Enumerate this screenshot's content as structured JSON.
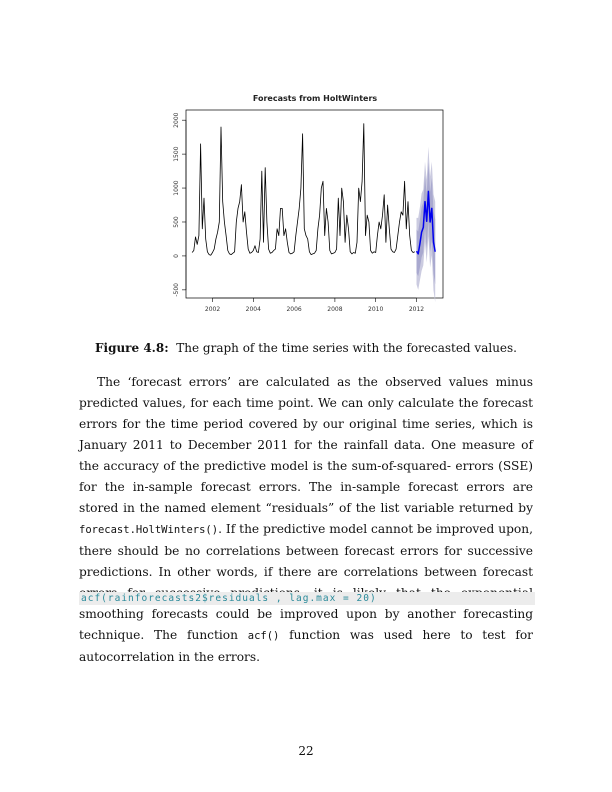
{
  "chart_data": {
    "type": "line",
    "title": "Forecasts from HoltWinters",
    "xlabel": "",
    "ylabel": "",
    "xlim": [
      2000.7,
      2013.3
    ],
    "ylim": [
      -620,
      2150
    ],
    "x_ticks": [
      2002,
      2004,
      2006,
      2008,
      2010,
      2012
    ],
    "x_tick_labels": [
      "2002",
      "2004",
      "2006",
      "2008",
      "2010",
      "2012"
    ],
    "y_ticks": [
      -500,
      0,
      500,
      1000,
      1500,
      2000
    ],
    "y_tick_labels": [
      "-500",
      "0",
      "500",
      "1000",
      "1500",
      "2000"
    ],
    "grid": false,
    "legend": "none",
    "colors": {
      "observed": "#000000",
      "forecast": "#0000ee",
      "band95": "#cbcbe0",
      "band80": "#a9a9cf"
    },
    "series": [
      {
        "x": [
          2001.0,
          2001.083,
          2001.167,
          2001.25,
          2001.333,
          2001.417,
          2001.5,
          2001.583,
          2001.667,
          2001.75,
          2001.833,
          2001.917,
          2002.0,
          2002.083,
          2002.167,
          2002.25,
          2002.333,
          2002.417,
          2002.5,
          2002.583,
          2002.667,
          2002.75,
          2002.833,
          2002.917,
          2003.0,
          2003.083,
          2003.167,
          2003.25,
          2003.333,
          2003.417,
          2003.5,
          2003.583,
          2003.667,
          2003.75,
          2003.833,
          2003.917,
          2004.0,
          2004.083,
          2004.167,
          2004.25,
          2004.333,
          2004.417,
          2004.5,
          2004.583,
          2004.667,
          2004.75,
          2004.833,
          2004.917,
          2005.0,
          2005.083,
          2005.167,
          2005.25,
          2005.333,
          2005.417,
          2005.5,
          2005.583,
          2005.667,
          2005.75,
          2005.833,
          2005.917,
          2006.0,
          2006.083,
          2006.167,
          2006.25,
          2006.333,
          2006.417,
          2006.5,
          2006.583,
          2006.667,
          2006.75,
          2006.833,
          2006.917,
          2007.0,
          2007.083,
          2007.167,
          2007.25,
          2007.333,
          2007.417,
          2007.5,
          2007.583,
          2007.667,
          2007.75,
          2007.833,
          2007.917,
          2008.0,
          2008.083,
          2008.167,
          2008.25,
          2008.333,
          2008.417,
          2008.5,
          2008.583,
          2008.667,
          2008.75,
          2008.833,
          2008.917,
          2009.0,
          2009.083,
          2009.167,
          2009.25,
          2009.333,
          2009.417,
          2009.5,
          2009.583,
          2009.667,
          2009.75,
          2009.833,
          2009.917,
          2010.0,
          2010.083,
          2010.167,
          2010.25,
          2010.333,
          2010.417,
          2010.5,
          2010.583,
          2010.667,
          2010.75,
          2010.833,
          2010.917,
          2011.0,
          2011.083,
          2011.167,
          2011.25,
          2011.333,
          2011.417,
          2011.5,
          2011.583,
          2011.667,
          2011.75,
          2011.833,
          2011.917
        ],
        "y": [
          50,
          80,
          280,
          170,
          300,
          1650,
          400,
          850,
          250,
          60,
          20,
          10,
          50,
          100,
          250,
          350,
          500,
          1900,
          800,
          500,
          300,
          80,
          30,
          20,
          40,
          60,
          500,
          700,
          800,
          1050,
          500,
          650,
          350,
          100,
          40,
          50,
          80,
          150,
          60,
          50,
          250,
          1250,
          200,
          1300,
          500,
          100,
          40,
          50,
          80,
          100,
          400,
          300,
          700,
          700,
          300,
          400,
          200,
          50,
          30,
          40,
          60,
          300,
          500,
          700,
          1000,
          1800,
          400,
          300,
          250,
          60,
          20,
          30,
          40,
          80,
          400,
          600,
          1000,
          1100,
          300,
          700,
          500,
          80,
          30,
          40,
          50,
          100,
          850,
          300,
          1000,
          800,
          200,
          600,
          400,
          60,
          30,
          50,
          40,
          200,
          1000,
          800,
          1100,
          1950,
          300,
          600,
          500,
          80,
          40,
          60,
          50,
          300,
          500,
          400,
          600,
          900,
          200,
          750,
          400,
          100,
          60,
          50,
          100,
          300,
          500,
          650,
          600,
          1100,
          400,
          800,
          300,
          80,
          50,
          60
        ],
        "style": "observed"
      },
      {
        "x": [
          2012.0,
          2012.083,
          2012.167,
          2012.25,
          2012.333,
          2012.417,
          2012.5,
          2012.583,
          2012.667,
          2012.75,
          2012.833,
          2012.917
        ],
        "y": [
          70,
          30,
          180,
          350,
          420,
          800,
          510,
          950,
          500,
          700,
          200,
          60
        ],
        "lo80": [
          -250,
          -300,
          -170,
          -20,
          50,
          420,
          110,
          520,
          60,
          250,
          -260,
          -420
        ],
        "hi80": [
          390,
          360,
          530,
          720,
          790,
          1180,
          910,
          1380,
          940,
          1150,
          660,
          540
        ],
        "lo95": [
          -420,
          -500,
          -360,
          -220,
          -140,
          210,
          -100,
          290,
          -170,
          10,
          -510,
          -680
        ],
        "hi95": [
          560,
          560,
          720,
          920,
          980,
          1390,
          1120,
          1610,
          1170,
          1390,
          910,
          800
        ],
        "style": "forecast"
      }
    ]
  },
  "caption": {
    "label": "Figure 4.8:",
    "text": "The graph of the time series with the forecasted values."
  },
  "body": {
    "p1_a": "The ‘forecast errors’ are calculated as the observed values minus predicted values, for each time point. We can only calculate the forecast errors for the time period covered by our original time series, which is January 2011 to December 2011 for the rainfall data. One measure of the accuracy of the predictive model is the sum-of-squared- errors (SSE) for the in-sample forecast errors. The in-sample forecast errors are stored in the named element “residuals” of the list variable returned by ",
    "p1_code1": "forecast.HoltWinters()",
    "p1_b": ". If the predictive model cannot be improved upon, there should be no correlations between forecast errors for successive predictions.  In other words, if there are correlations between forecast errors for successive predictions, it is likely that the exponential smoothing forecasts could be improved upon by another forecasting technique. The function ",
    "p1_code2": "acf()",
    "p1_c": " function was used here to test for autocorrelation in the errors."
  },
  "code_line": "acf(rainforecasts2$residuals , lag.max = 20)",
  "page_number": "22"
}
